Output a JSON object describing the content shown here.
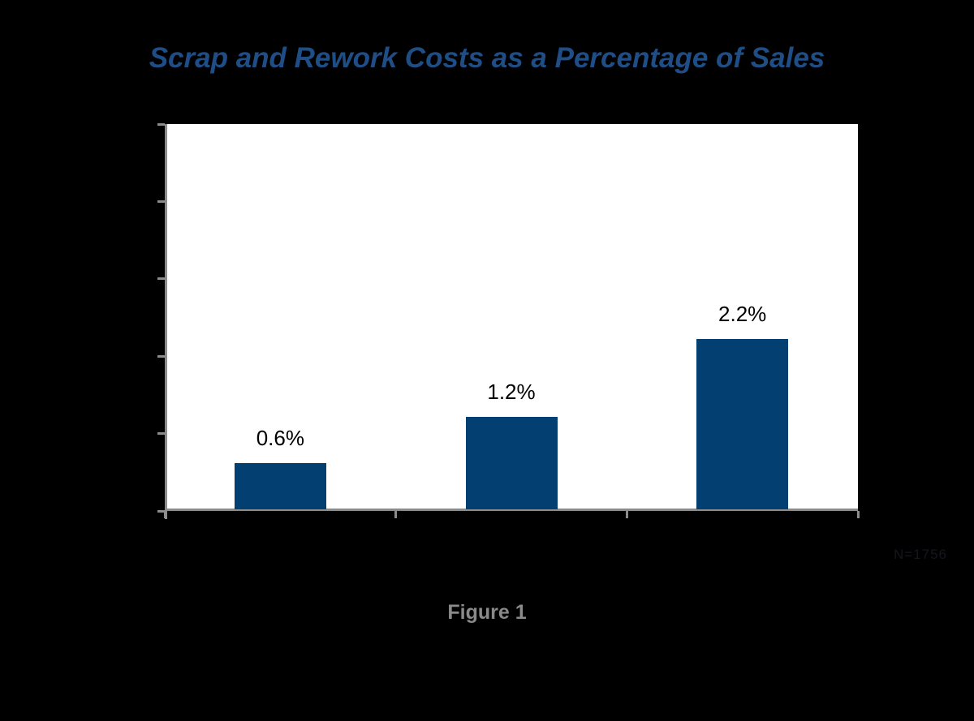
{
  "page": {
    "background_color": "#000000"
  },
  "title": {
    "text": "Scrap and Rework Costs as a Percentage of Sales",
    "color": "#1F4E87"
  },
  "caption": {
    "text": "Figure 1",
    "color": "#8A8A8A"
  },
  "footnote": {
    "text": "N=1756",
    "color": "#15161C"
  },
  "chart_data": {
    "type": "bar",
    "title": "Scrap and Rework Costs as a Percentage of Sales",
    "categories": [
      "",
      "",
      ""
    ],
    "values": [
      0.6,
      1.2,
      2.2
    ],
    "data_labels": [
      "0.6%",
      "1.2%",
      "2.2%"
    ],
    "xlabel": "",
    "ylabel": "",
    "ylim": [
      0,
      5
    ],
    "y_tick_step": 1,
    "y_tick_count": 6,
    "x_tick_count": 4,
    "y_tick_labels_visible": false,
    "x_tick_labels_visible": false,
    "grid": false,
    "legend_position": "none",
    "bar_color": "#033F70",
    "axis_color": "#8C8C8C",
    "plot_background": "#FFFFFF",
    "data_label_color": "#000000"
  }
}
